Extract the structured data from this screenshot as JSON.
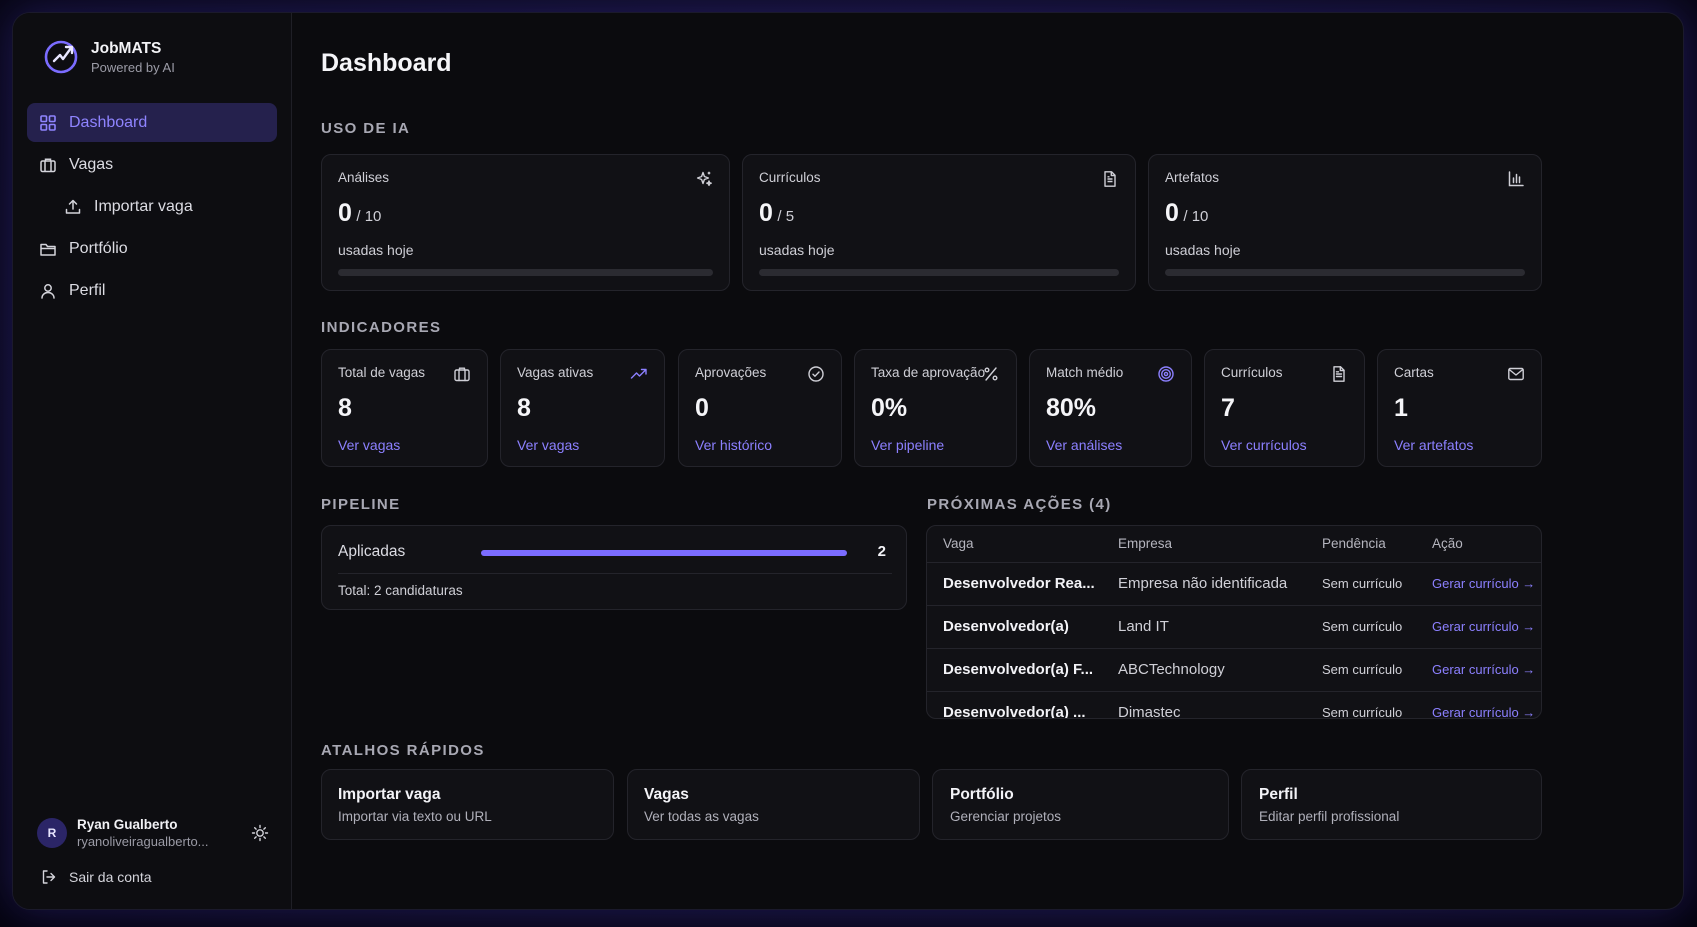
{
  "brand": {
    "name": "JobMATS",
    "tagline": "Powered by AI"
  },
  "nav": {
    "dashboard": "Dashboard",
    "vagas": "Vagas",
    "importar": "Importar vaga",
    "portfolio": "Portfólio",
    "perfil": "Perfil"
  },
  "user": {
    "initial": "R",
    "name": "Ryan Gualberto",
    "email": "ryanoliveiragualberto...",
    "logout": "Sair da conta"
  },
  "page_title": "Dashboard",
  "ia_usage": {
    "title": "USO DE IA",
    "cards": [
      {
        "label": "Análises",
        "value": "0",
        "limit": "/ 10",
        "caption": "usadas hoje",
        "progress": 0,
        "icon": "sparkles-icon"
      },
      {
        "label": "Currículos",
        "value": "0",
        "limit": "/ 5",
        "caption": "usadas hoje",
        "progress": 0,
        "icon": "document-icon"
      },
      {
        "label": "Artefatos",
        "value": "0",
        "limit": "/ 10",
        "caption": "usadas hoje",
        "progress": 0,
        "icon": "bar-chart-icon"
      }
    ]
  },
  "indicators": {
    "title": "INDICADORES",
    "cards": [
      {
        "label": "Total de vagas",
        "value": "8",
        "link": "Ver vagas",
        "icon": "briefcase-icon"
      },
      {
        "label": "Vagas ativas",
        "value": "8",
        "link": "Ver vagas",
        "icon": "trending-up-icon"
      },
      {
        "label": "Aprovações",
        "value": "0",
        "link": "Ver histórico",
        "icon": "check-circle-icon"
      },
      {
        "label": "Taxa de aprovação",
        "value": "0%",
        "link": "Ver pipeline",
        "icon": "percent-icon"
      },
      {
        "label": "Match médio",
        "value": "80%",
        "link": "Ver análises",
        "icon": "target-icon"
      },
      {
        "label": "Currículos",
        "value": "7",
        "link": "Ver currículos",
        "icon": "document-icon"
      },
      {
        "label": "Cartas",
        "value": "1",
        "link": "Ver artefatos",
        "icon": "mail-icon"
      }
    ]
  },
  "pipeline": {
    "title": "PIPELINE",
    "stage": "Aplicadas",
    "count": "2",
    "progress": 1,
    "total": "Total: 2 candidaturas"
  },
  "next_actions": {
    "title": "PRÓXIMAS AÇÕES (4)",
    "headers": [
      "Vaga",
      "Empresa",
      "Pendência",
      "Ação"
    ],
    "rows": [
      {
        "vaga": "Desenvolvedor Rea...",
        "empresa": "Empresa não identificada",
        "pendencia": "Sem currículo",
        "acao": "Gerar currículo →"
      },
      {
        "vaga": "Desenvolvedor(a)",
        "empresa": "Land IT",
        "pendencia": "Sem currículo",
        "acao": "Gerar currículo →"
      },
      {
        "vaga": "Desenvolvedor(a) F...",
        "empresa": "ABCTechnology",
        "pendencia": "Sem currículo",
        "acao": "Gerar currículo →"
      },
      {
        "vaga": "Desenvolvedor(a) ...",
        "empresa": "Dimastec",
        "pendencia": "Sem currículo",
        "acao": "Gerar currículo →"
      }
    ]
  },
  "shortcuts": {
    "title": "ATALHOS RÁPIDOS",
    "items": [
      {
        "title": "Importar vaga",
        "sub": "Importar via texto ou URL"
      },
      {
        "title": "Vagas",
        "sub": "Ver todas as vagas"
      },
      {
        "title": "Portfólio",
        "sub": "Gerenciar projetos"
      },
      {
        "title": "Perfil",
        "sub": "Editar perfil profissional"
      }
    ]
  },
  "colors": {
    "accent": "#7b6cff",
    "link": "#8c80ff",
    "active_bg": "#25214d",
    "card_bg": "#111115",
    "border": "#24242b"
  }
}
